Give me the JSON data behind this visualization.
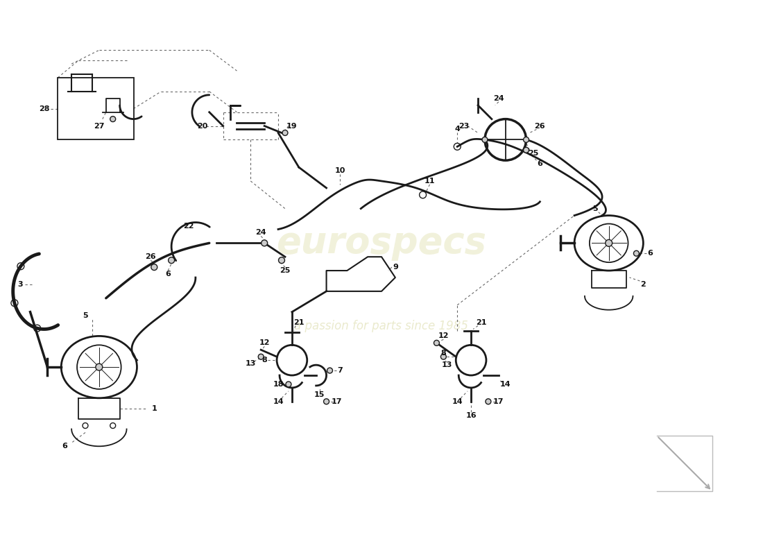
{
  "background_color": "#ffffff",
  "watermark1_text": "eurospecs",
  "watermark2_text": "a passion for parts since 1985",
  "watermark_color": "#f0f0d8",
  "dc": "#1a1a1a",
  "lc": "#111111",
  "dlc": "#666666",
  "fig_width": 11.0,
  "fig_height": 8.0,
  "dpi": 100,
  "lw_main": 2.0,
  "lw_hose": 2.5,
  "lw_thin": 1.0
}
